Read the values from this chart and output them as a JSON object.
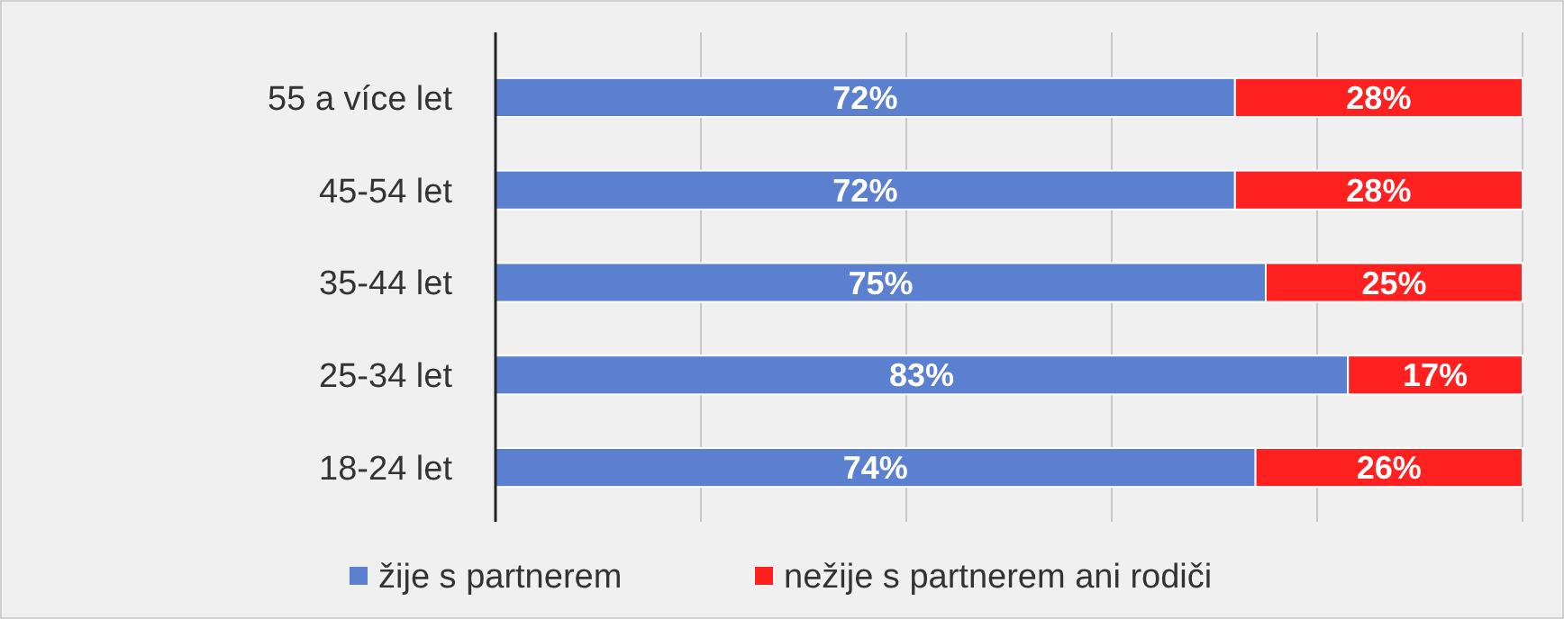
{
  "chart_data": {
    "type": "bar",
    "orientation": "horizontal",
    "stacked": true,
    "categories": [
      "55 a více let",
      "45-54 let",
      "35-44 let",
      "25-34 let",
      "18-24 let"
    ],
    "series": [
      {
        "name": "žije s partnerem",
        "color": "#5b80d0",
        "values": [
          72,
          72,
          75,
          83,
          74
        ],
        "value_labels": [
          "72%",
          "72%",
          "75%",
          "83%",
          "74%"
        ]
      },
      {
        "name": "nežije s partnerem ani rodiči",
        "color": "#ff2020",
        "values": [
          28,
          28,
          25,
          17,
          26
        ],
        "value_labels": [
          "28%",
          "28%",
          "25%",
          "17%",
          "26%"
        ]
      }
    ],
    "xlim": [
      0,
      100
    ],
    "xticks": [
      {
        "value": 0,
        "label": null
      },
      {
        "value": 20,
        "label": null
      },
      {
        "value": 40,
        "label": null
      },
      {
        "value": 60,
        "label": null
      },
      {
        "value": 80,
        "label": null
      },
      {
        "value": 100,
        "label": null
      }
    ],
    "grid": "x",
    "tick_labels": "y",
    "legend": "bottom"
  }
}
